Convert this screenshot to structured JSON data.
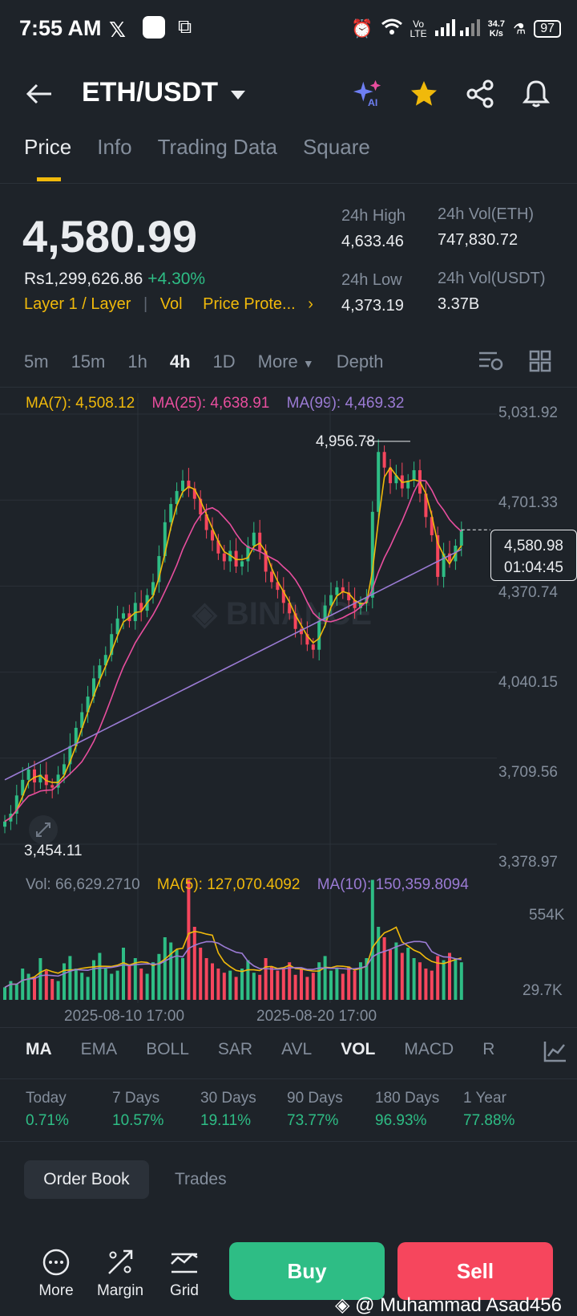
{
  "status_bar": {
    "time": "7:55 AM",
    "net_speed_top": "34.7",
    "net_speed_bottom": "K/s",
    "battery": "97",
    "vo_top": "Vo",
    "vo_bottom": "LTE"
  },
  "header": {
    "pair": "ETH/USDT",
    "icons": [
      "back-arrow-icon",
      "chevron-down-icon",
      "ai-sparkle-icon",
      "star-icon",
      "share-icon",
      "bell-icon"
    ],
    "star_color": "#f0b90b"
  },
  "tabs": [
    "Price",
    "Info",
    "Trading Data",
    "Square"
  ],
  "price": {
    "last": "4,580.99",
    "fiat": "Rs1,299,626.86",
    "change": "+4.30%",
    "tags": "Layer 1 / Layer",
    "vol_tag": "Vol",
    "protect": "Price Prote..."
  },
  "stats": {
    "high_label": "24h High",
    "high": "4,633.46",
    "vol_eth_label": "24h Vol(ETH)",
    "vol_eth": "747,830.72",
    "low_label": "24h Low",
    "low": "4,373.19",
    "vol_usdt_label": "24h Vol(USDT)",
    "vol_usdt": "3.37B"
  },
  "timeframes": [
    "5m",
    "15m",
    "1h",
    "4h",
    "1D",
    "More",
    "Depth"
  ],
  "active_timeframe": "4h",
  "ma_legend": {
    "ma7": "MA(7): 4,508.12",
    "ma25": "MA(25): 4,638.91",
    "ma99": "MA(99): 4,469.32"
  },
  "vol_legend": {
    "vol": "Vol: 66,629.2710",
    "ma5": "MA(5): 127,070.4092",
    "ma10": "MA(10): 150,359.8094"
  },
  "chart_data": {
    "type": "candlestick",
    "y_ticks": [
      "5,031.92",
      "4,701.33",
      "4,370.74",
      "4,040.15",
      "3,709.56",
      "3,378.97"
    ],
    "ylim": [
      3378.97,
      5031.92
    ],
    "x_ticks": [
      "2025-08-10 17:00",
      "2025-08-20 17:00"
    ],
    "high_marker": "4,956.78",
    "low_marker": "3,454.11",
    "last_price": "4,580.98",
    "countdown": "01:04:45",
    "close_series": [
      3460,
      3490,
      3560,
      3620,
      3660,
      3610,
      3640,
      3600,
      3590,
      3640,
      3680,
      3750,
      3820,
      3880,
      3940,
      4010,
      4060,
      4100,
      4180,
      4240,
      4260,
      4230,
      4300,
      4270,
      4330,
      4380,
      4480,
      4610,
      4680,
      4730,
      4770,
      4740,
      4700,
      4640,
      4580,
      4540,
      4490,
      4460,
      4500,
      4440,
      4460,
      4520,
      4570,
      4500,
      4420,
      4380,
      4350,
      4300,
      4260,
      4200,
      4180,
      4140,
      4120,
      4230,
      4290,
      4330,
      4360,
      4340,
      4310,
      4280,
      4300,
      4320,
      4650,
      4880,
      4820,
      4760,
      4790,
      4740,
      4770,
      4810,
      4720,
      4630,
      4560,
      4400,
      4490,
      4460,
      4520,
      4580
    ],
    "volume": {
      "y_ticks": [
        "554K",
        "29.7K"
      ],
      "bars": [
        12,
        18,
        15,
        30,
        25,
        22,
        40,
        28,
        20,
        18,
        35,
        42,
        30,
        26,
        22,
        38,
        45,
        30,
        25,
        28,
        50,
        34,
        40,
        30,
        25,
        36,
        44,
        60,
        55,
        48,
        40,
        115,
        70,
        50,
        40,
        35,
        30,
        26,
        28,
        22,
        30,
        38,
        26,
        24,
        40,
        32,
        28,
        30,
        36,
        24,
        30,
        22,
        26,
        36,
        42,
        28,
        30,
        25,
        32,
        28,
        36,
        40,
        115,
        70,
        60,
        48,
        55,
        45,
        50,
        40,
        36,
        30,
        28,
        42,
        38,
        45,
        40,
        36
      ]
    }
  },
  "indicators": [
    "MA",
    "EMA",
    "BOLL",
    "SAR",
    "AVL",
    "VOL",
    "MACD",
    "R"
  ],
  "performance": [
    {
      "label": "Today",
      "value": "0.71%"
    },
    {
      "label": "7 Days",
      "value": "10.57%"
    },
    {
      "label": "30 Days",
      "value": "19.11%"
    },
    {
      "label": "90 Days",
      "value": "73.77%"
    },
    {
      "label": "180 Days",
      "value": "96.93%"
    },
    {
      "label": "1 Year",
      "value": "77.88%"
    }
  ],
  "orderbook": {
    "tab1": "Order Book",
    "tab2": "Trades"
  },
  "bottom": {
    "more": "More",
    "margin": "Margin",
    "grid": "Grid",
    "buy": "Buy",
    "sell": "Sell",
    "watermark": "@ Muhammad Asad456"
  },
  "colors": {
    "up": "#2ebd85",
    "down": "#f6465d",
    "accent": "#f0b90b",
    "bg": "#1e2329"
  }
}
